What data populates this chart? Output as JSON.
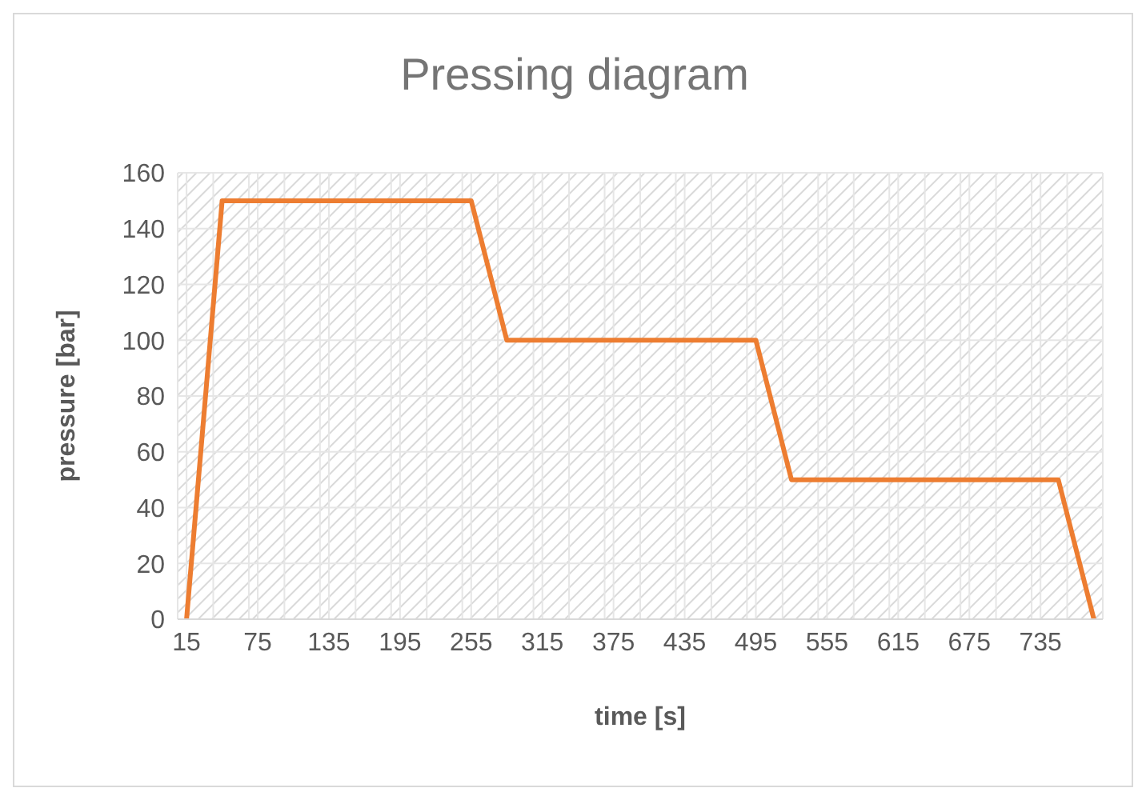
{
  "chart_data": {
    "type": "line",
    "title": "Pressing diagram",
    "xlabel": "time [s]",
    "ylabel": "pressure [bar]",
    "x": [
      15,
      45,
      255,
      285,
      495,
      525,
      750,
      780
    ],
    "series": [
      {
        "color": "#ed7d31",
        "values": [
          0,
          150,
          150,
          100,
          100,
          50,
          50,
          0
        ]
      }
    ],
    "xlim": [
      7.5,
      787.5
    ],
    "xticks": [
      15,
      {
        "value": 37.5,
        "label": null
      },
      {
        "value": 67.5,
        "label": null
      },
      75,
      {
        "value": 97.5,
        "label": null
      },
      {
        "value": 127.5,
        "label": null
      },
      135,
      {
        "value": 157.5,
        "label": null
      },
      {
        "value": 187.5,
        "label": null
      },
      195,
      {
        "value": 217.5,
        "label": null
      },
      {
        "value": 247.5,
        "label": null
      },
      255,
      {
        "value": 277.5,
        "label": null
      },
      {
        "value": 307.5,
        "label": null
      },
      315,
      {
        "value": 337.5,
        "label": null
      },
      {
        "value": 367.5,
        "label": null
      },
      375,
      {
        "value": 397.5,
        "label": null
      },
      {
        "value": 427.5,
        "label": null
      },
      435,
      {
        "value": 457.5,
        "label": null
      },
      {
        "value": 487.5,
        "label": null
      },
      495,
      {
        "value": 517.5,
        "label": null
      },
      {
        "value": 547.5,
        "label": null
      },
      555,
      {
        "value": 577.5,
        "label": null
      },
      {
        "value": 607.5,
        "label": null
      },
      615,
      {
        "value": 637.5,
        "label": null
      },
      {
        "value": 667.5,
        "label": null
      },
      675,
      {
        "value": 697.5,
        "label": null
      },
      {
        "value": 727.5,
        "label": null
      },
      735,
      {
        "value": 757.5,
        "label": null
      }
    ],
    "ylim": [
      0,
      160
    ],
    "yticks": [
      0,
      20,
      40,
      60,
      80,
      100,
      120,
      140,
      160
    ],
    "grid": true,
    "legend": false,
    "marker": "none",
    "line_style": "solid"
  }
}
